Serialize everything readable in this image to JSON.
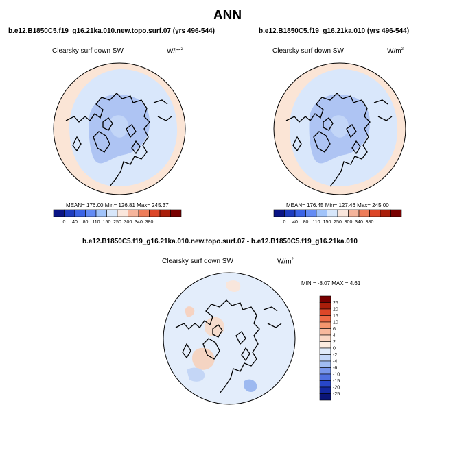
{
  "header": {
    "title": "ANN"
  },
  "panels": [
    {
      "title": "b.e12.B1850C5.f19_g16.21ka.010.new.topo.surf.07 (yrs 496-544)",
      "field": "Clearsky surf down SW",
      "units_base": "W/m",
      "units_exp": "2",
      "stats": "MEAN= 176.00  Min= 126.81  Max= 245.37"
    },
    {
      "title": "b.e12.B1850C5.f19_g16.21ka.010 (yrs 496-544)",
      "field": "Clearsky surf down SW",
      "units_base": "W/m",
      "units_exp": "2",
      "stats": "MEAN= 176.45  Min= 127.46  Max= 245.00"
    },
    {
      "title": "b.e12.B1850C5.f19_g16.21ka.010.new.topo.surf.07 - b.e12.B1850C5.f19_g16.21ka.010",
      "field": "Clearsky surf down SW",
      "units_base": "W/m",
      "units_exp": "2",
      "stats": "MIN =  -8.07 MAX =   4.61"
    }
  ],
  "chart_data": [
    {
      "type": "heatmap",
      "projection": "north-polar-stereographic",
      "title": "b.e12.B1850C5.f19_g16.21ka.010.new.topo.surf.07 (yrs 496-544)",
      "field": "Clearsky surf down SW",
      "units": "W/m2",
      "mean": 176.0,
      "min": 126.81,
      "max": 245.37,
      "colorbar": {
        "orientation": "horizontal",
        "levels": [
          "0",
          "40",
          "80",
          "110",
          "150",
          "250",
          "300",
          "340",
          "380"
        ],
        "colors": [
          "#0a1485",
          "#1e3cbf",
          "#3c64e6",
          "#648cf5",
          "#a0c3fa",
          "#d7e6fa",
          "#fae6dc",
          "#f5b49b",
          "#ee7d5a",
          "#dc4628",
          "#aa1e0a",
          "#780000"
        ]
      }
    },
    {
      "type": "heatmap",
      "projection": "north-polar-stereographic",
      "title": "b.e12.B1850C5.f19_g16.21ka.010 (yrs 496-544)",
      "field": "Clearsky surf down SW",
      "units": "W/m2",
      "mean": 176.45,
      "min": 127.46,
      "max": 245.0,
      "colorbar": {
        "orientation": "horizontal",
        "levels": [
          "0",
          "40",
          "80",
          "110",
          "150",
          "250",
          "300",
          "340",
          "380"
        ],
        "colors": [
          "#0a1485",
          "#1e3cbf",
          "#3c64e6",
          "#648cf5",
          "#a0c3fa",
          "#d7e6fa",
          "#fae6dc",
          "#f5b49b",
          "#ee7d5a",
          "#dc4628",
          "#aa1e0a",
          "#780000"
        ]
      }
    },
    {
      "type": "heatmap",
      "projection": "north-polar-stereographic",
      "title": "b.e12.B1850C5.f19_g16.21ka.010.new.topo.surf.07 - b.e12.B1850C5.f19_g16.21ka.010",
      "field": "Clearsky surf down SW",
      "units": "W/m2",
      "min": -8.07,
      "max": 4.61,
      "colorbar": {
        "orientation": "vertical",
        "levels": [
          "25",
          "20",
          "15",
          "10",
          "6",
          "4",
          "2",
          "0",
          "-2",
          "-4",
          "-6",
          "-10",
          "-15",
          "-20",
          "-25"
        ],
        "colors": [
          "#780000",
          "#aa1e0a",
          "#dc4628",
          "#ee6a46",
          "#f5966e",
          "#f8b99c",
          "#fad7c3",
          "#fcece0",
          "#e1ecfa",
          "#c3d7f8",
          "#a0bcf2",
          "#7896eb",
          "#5070e0",
          "#2846c8",
          "#1428a0",
          "#0a1478"
        ]
      }
    }
  ]
}
